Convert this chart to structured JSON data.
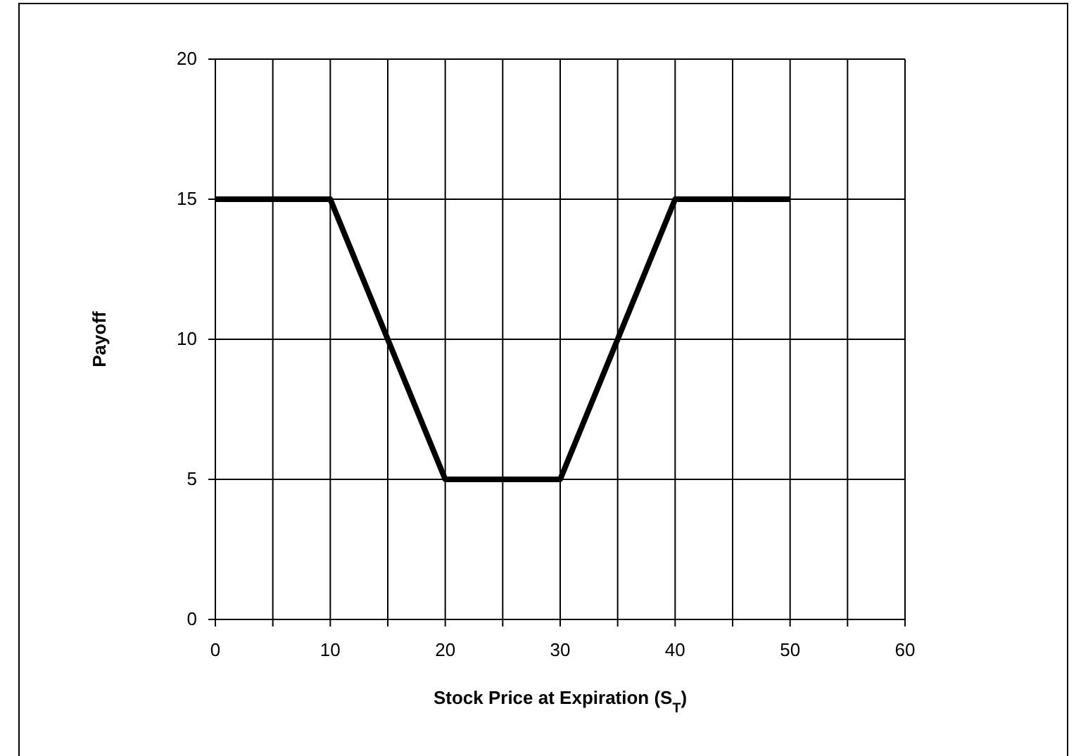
{
  "chart_data": {
    "type": "line",
    "xlabel": "Stock Price at Expiration (S$_{T}$)",
    "ylabel": "Payoff",
    "x": [
      0,
      10,
      20,
      30,
      40,
      50
    ],
    "series": [
      {
        "color": "#000000",
        "values": [
          15,
          15,
          5,
          5,
          15,
          15
        ]
      }
    ],
    "xlim": [
      0,
      60
    ],
    "ylim": [
      0,
      20
    ],
    "xticks": [
      0,
      {
        "value": 5,
        "label": null
      },
      10,
      {
        "value": 15,
        "label": null
      },
      20,
      {
        "value": 25,
        "label": null
      },
      30,
      {
        "value": 35,
        "label": null
      },
      40,
      {
        "value": 45,
        "label": null
      },
      50,
      {
        "value": 55,
        "label": null
      },
      60
    ],
    "yticks": [
      0,
      5,
      10,
      15,
      20
    ],
    "grid": true,
    "marker": "none",
    "line_style": "solid"
  }
}
